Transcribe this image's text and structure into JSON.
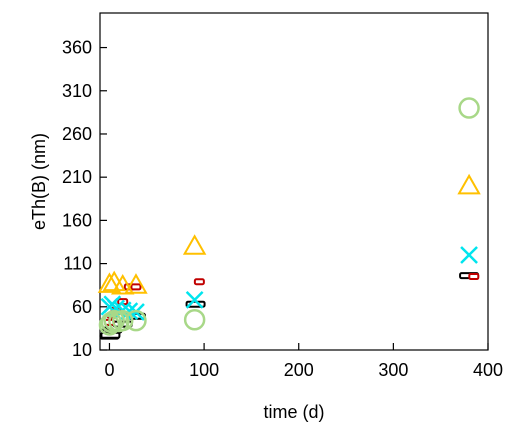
{
  "chart_data": {
    "type": "scatter",
    "xlabel": "time (d)",
    "ylabel": "eTh(B) (nm)",
    "xlim": [
      -10,
      400
    ],
    "ylim": [
      10,
      400
    ],
    "x_ticks": [
      0,
      100,
      200,
      300,
      400
    ],
    "y_ticks": [
      10,
      60,
      110,
      160,
      210,
      260,
      310,
      360
    ],
    "grid": false,
    "legend": "none",
    "series": [
      {
        "marker": "dash-black",
        "color": "#000000",
        "points": [
          [
            0,
            26
          ],
          [
            1,
            27
          ],
          [
            3,
            33
          ],
          [
            7,
            36
          ],
          [
            14,
            40
          ],
          [
            28,
            49
          ],
          [
            91,
            63
          ],
          [
            380,
            96
          ]
        ]
      },
      {
        "marker": "dash-red",
        "color": "#c00000",
        "points": [
          [
            0,
            42
          ],
          [
            3,
            50
          ],
          [
            7,
            56
          ],
          [
            14,
            66
          ],
          [
            21,
            83
          ],
          [
            28,
            83
          ],
          [
            95,
            89
          ],
          [
            385,
            95
          ]
        ]
      },
      {
        "marker": "x-cyan",
        "color": "#00e5ee",
        "points": [
          [
            0,
            60
          ],
          [
            3,
            63
          ],
          [
            7,
            58
          ],
          [
            14,
            56
          ],
          [
            21,
            55
          ],
          [
            28,
            54
          ],
          [
            90,
            68
          ],
          [
            380,
            120
          ]
        ]
      },
      {
        "marker": "triangle-orange",
        "color": "#ffc000",
        "points": [
          [
            0,
            86
          ],
          [
            5,
            88
          ],
          [
            14,
            84
          ],
          [
            28,
            85
          ],
          [
            90,
            130
          ],
          [
            380,
            200
          ]
        ]
      },
      {
        "marker": "circle-green",
        "color": "#a8d888",
        "points": [
          [
            0,
            39
          ],
          [
            2,
            42
          ],
          [
            5,
            44
          ],
          [
            10,
            43
          ],
          [
            14,
            44
          ],
          [
            28,
            44
          ],
          [
            90,
            45
          ],
          [
            380,
            290
          ]
        ]
      }
    ]
  }
}
